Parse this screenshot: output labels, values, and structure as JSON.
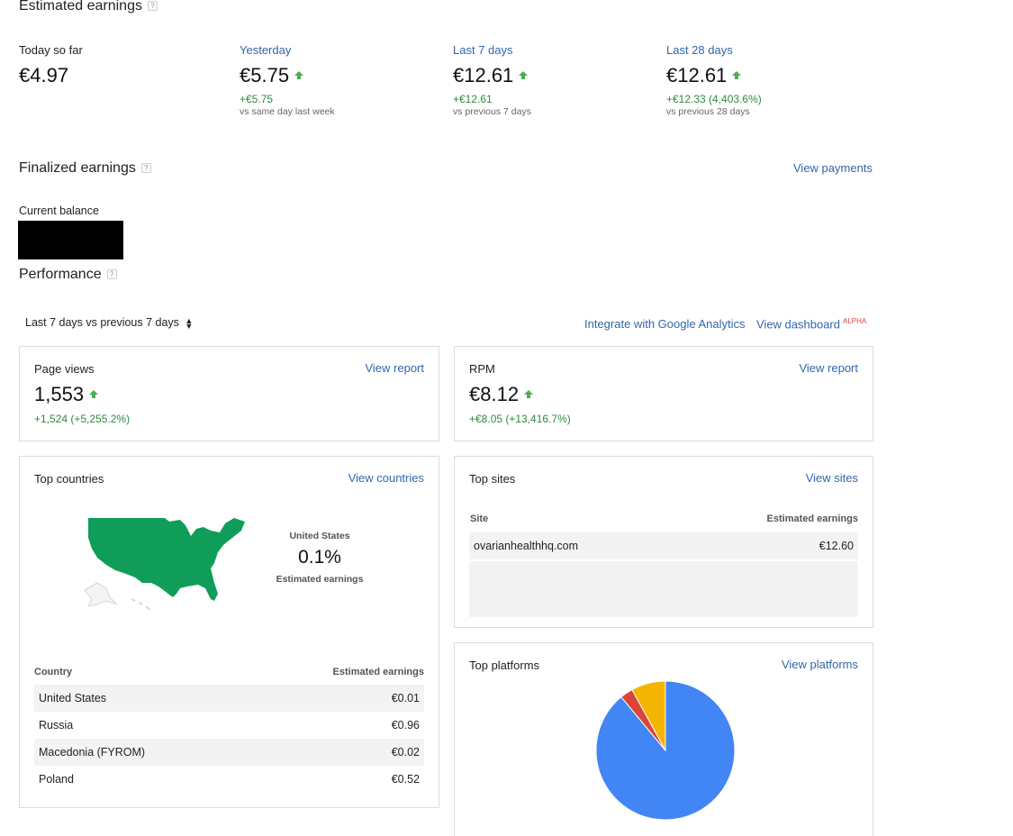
{
  "estimated": {
    "title": "Estimated earnings",
    "help": "?",
    "stats": [
      {
        "label": "Today so far",
        "value": "€4.97",
        "delta": "",
        "sub": ""
      },
      {
        "label": "Yesterday",
        "value": "€5.75",
        "delta": "+€5.75",
        "sub": "vs same day last week"
      },
      {
        "label": "Last 7 days",
        "value": "€12.61",
        "delta": "+€12.61",
        "sub": "vs previous 7 days"
      },
      {
        "label": "Last 28 days",
        "value": "€12.61",
        "delta": "+€12.33 (4,403.6%)",
        "sub": "vs previous 28 days"
      }
    ]
  },
  "finalized": {
    "title": "Finalized earnings",
    "help": "?",
    "view_payments": "View payments",
    "balance_label": "Current balance"
  },
  "performance": {
    "title": "Performance",
    "help": "?",
    "range": "Last 7 days vs previous 7 days",
    "integrate_link": "Integrate with Google Analytics",
    "dashboard_link": "View dashboard",
    "alpha": "ALPHA"
  },
  "pageviews": {
    "label": "Page views",
    "link": "View report",
    "value": "1,553",
    "delta": "+1,524 (+5,255.2%)"
  },
  "rpm": {
    "label": "RPM",
    "link": "View report",
    "value": "€8.12",
    "delta": "+€8.05 (+13,416.7%)"
  },
  "countries": {
    "title": "Top countries",
    "link": "View countries",
    "map_country": "United States",
    "map_percent": "0.1%",
    "map_metric": "Estimated earnings",
    "map_color": "#109d59",
    "col_country": "Country",
    "col_earnings": "Estimated earnings",
    "rows": [
      {
        "name": "United States",
        "value": "€0.01"
      },
      {
        "name": "Russia",
        "value": "€0.96"
      },
      {
        "name": "Macedonia (FYROM)",
        "value": "€0.02"
      },
      {
        "name": "Poland",
        "value": "€0.52"
      }
    ]
  },
  "sites": {
    "title": "Top sites",
    "link": "View sites",
    "col_site": "Site",
    "col_earnings": "Estimated earnings",
    "rows": [
      {
        "name": "ovarianhealthhq.com",
        "value": "€12.60"
      }
    ]
  },
  "platforms": {
    "title": "Top platforms",
    "link": "View platforms",
    "chart_data": {
      "type": "pie",
      "values": [
        89,
        3,
        8
      ],
      "colors": [
        "#4285f4",
        "#db4437",
        "#f4b400"
      ]
    }
  }
}
